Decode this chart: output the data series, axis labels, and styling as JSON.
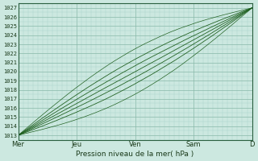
{
  "xlabel": "Pression niveau de la mer( hPa )",
  "x_ticks_labels": [
    "Mer",
    "Jeu",
    "Ven",
    "Sam",
    "D"
  ],
  "x_ticks_pos": [
    0,
    48,
    96,
    144,
    192
  ],
  "ylim": [
    1012.5,
    1027.5
  ],
  "xlim": [
    0,
    192
  ],
  "y_ticks": [
    1013,
    1014,
    1015,
    1016,
    1017,
    1018,
    1019,
    1020,
    1021,
    1022,
    1023,
    1024,
    1025,
    1026,
    1027
  ],
  "bg_color": "#cce8e0",
  "plot_bg_color": "#cce8e0",
  "grid_major_color": "#88b8a8",
  "grid_minor_color": "#aad4c8",
  "line_color": "#1a5c1a",
  "n_points": 193
}
